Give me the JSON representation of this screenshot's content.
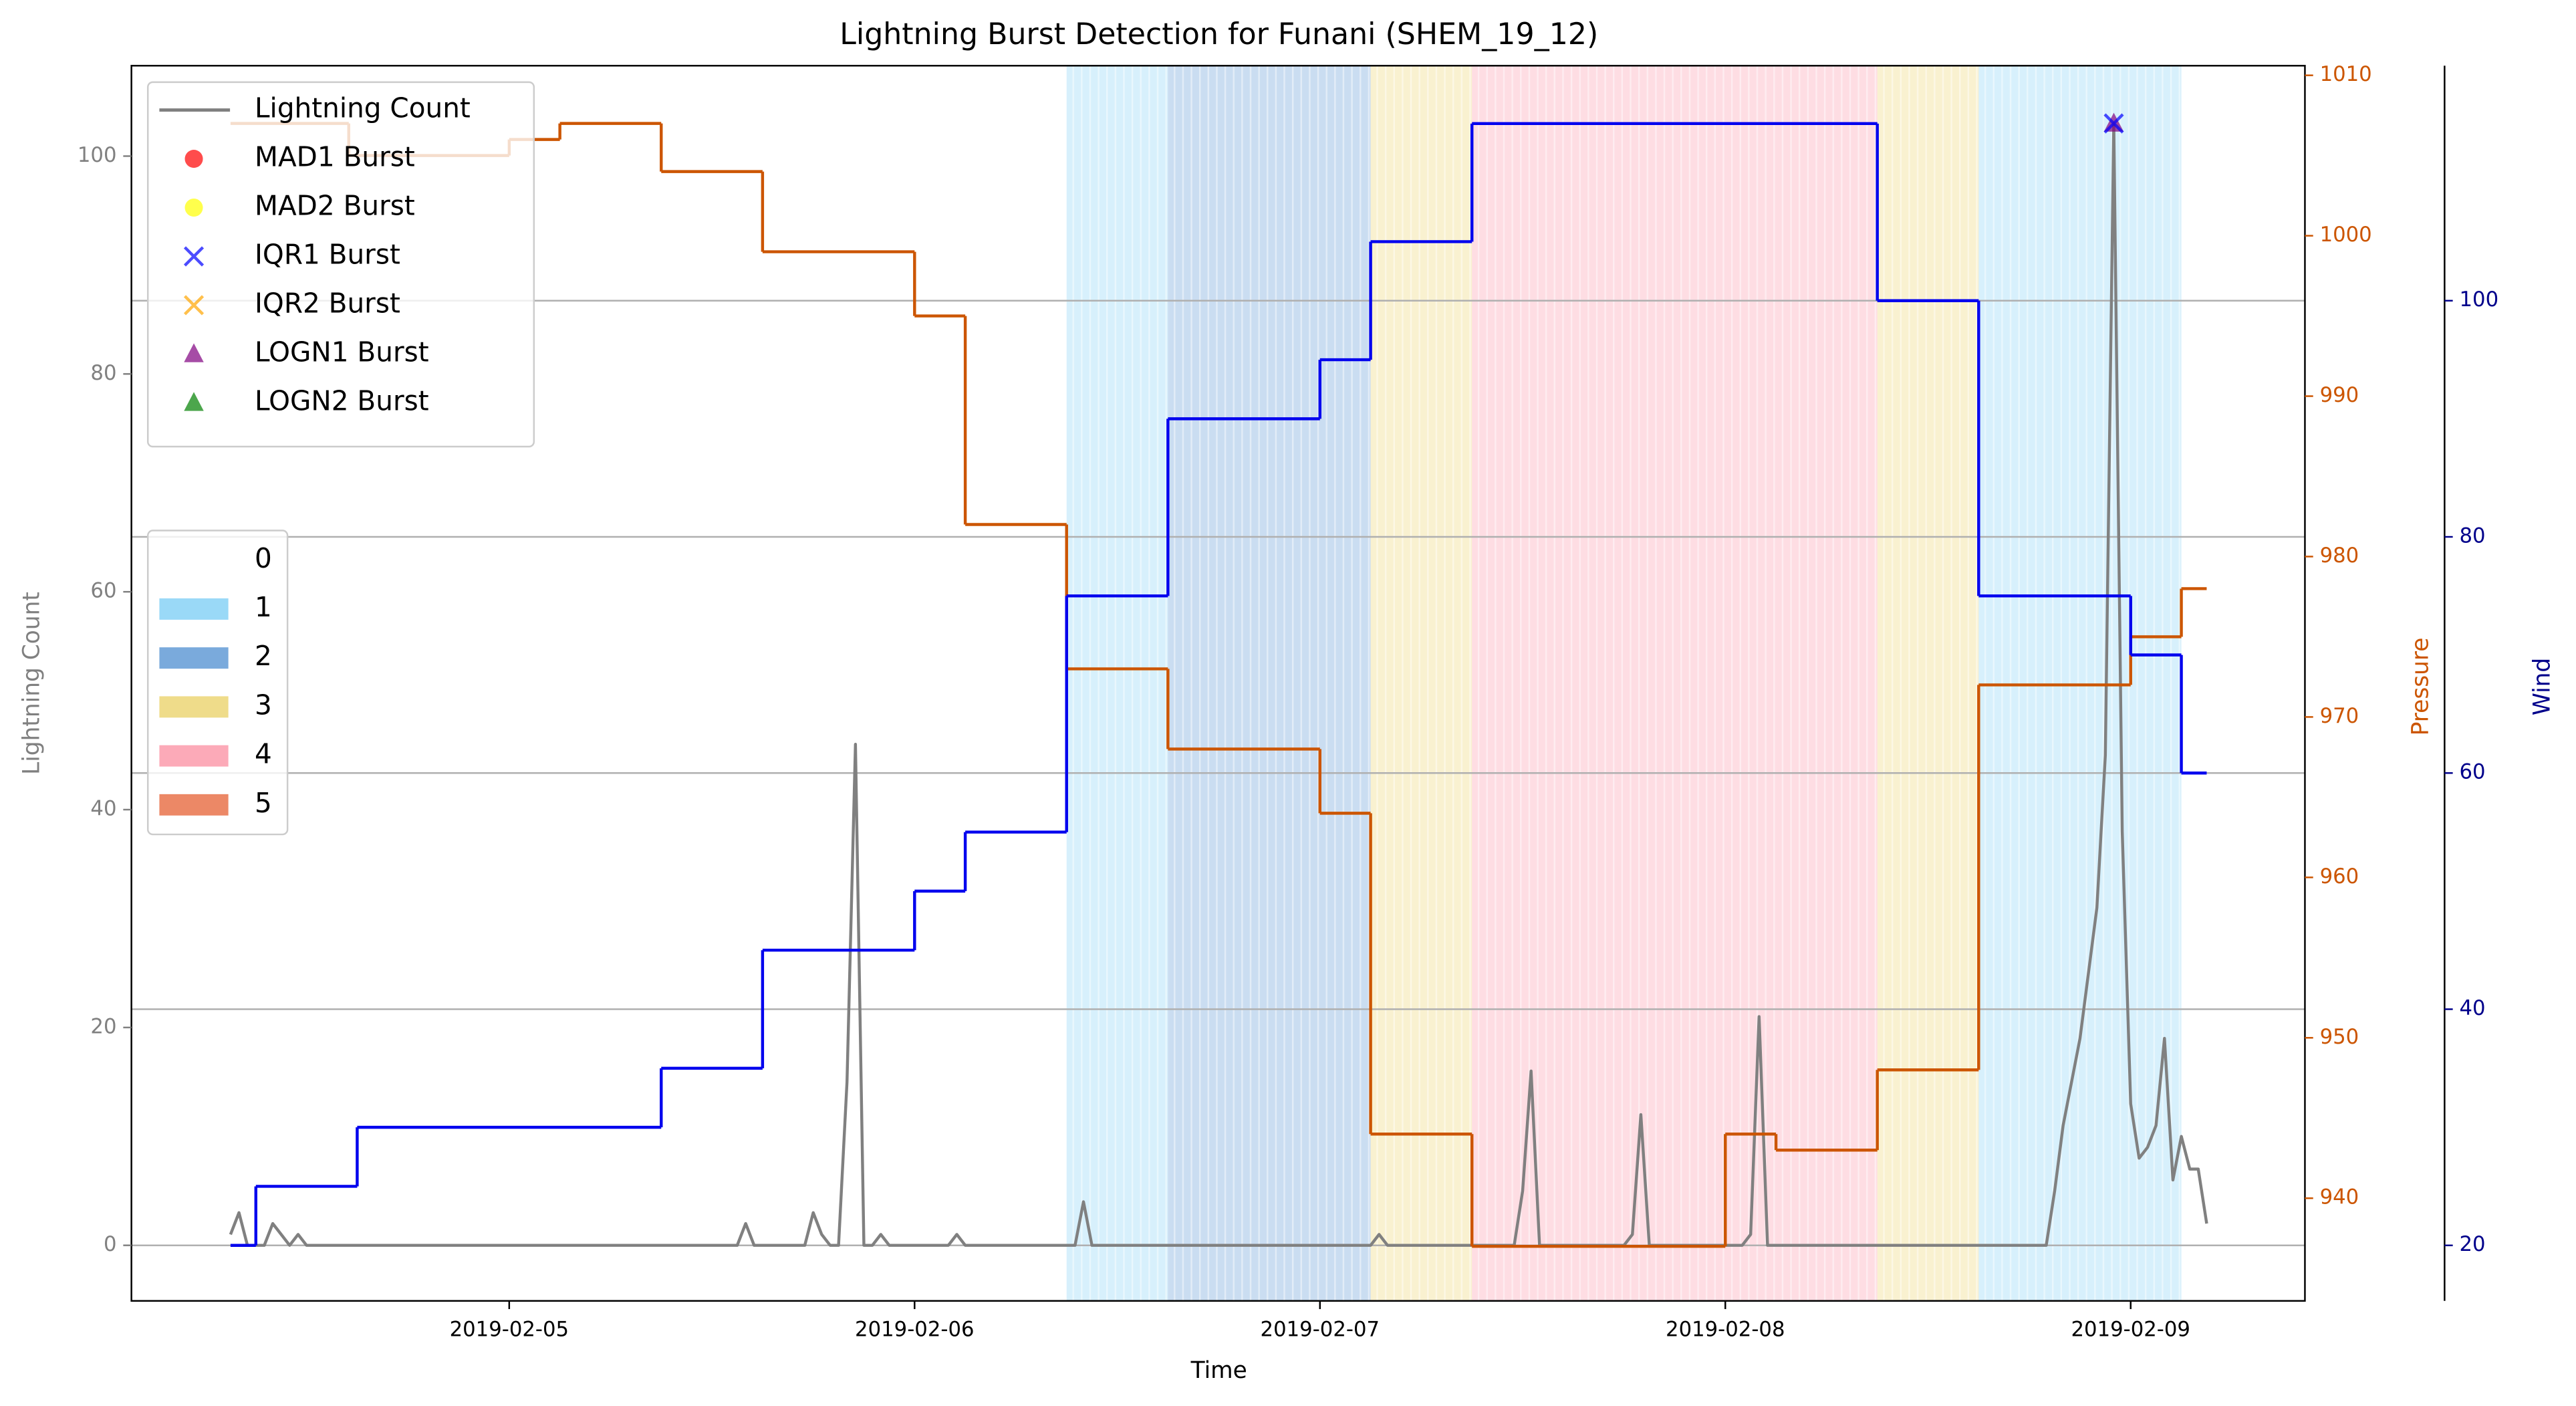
{
  "chart_data": {
    "type": "line",
    "title": "Lightning Burst Detection for Funani (SHEM_19_12)",
    "xlabel": "Time",
    "ylabel": "Lightning Count",
    "y2label": "Pressure",
    "y3label": "Wind",
    "xlim": [
      "2019-02-04 01:38",
      "2019-02-09 10:19"
    ],
    "xticks": [
      "2019-02-05",
      "2019-02-06",
      "2019-02-07",
      "2019-02-08",
      "2019-02-09"
    ],
    "ylim": [
      -5.1,
      108.3
    ],
    "yticks": [
      0,
      20,
      40,
      60,
      80,
      100
    ],
    "y2lim": [
      933.6,
      1010.6
    ],
    "y2ticks": [
      940,
      950,
      960,
      970,
      980,
      990,
      1000,
      1010
    ],
    "y3lim": [
      15.3,
      119.9
    ],
    "y3ticks": [
      20,
      40,
      60,
      80,
      100
    ],
    "y3grid": true,
    "legend_loc": "upper left",
    "series": [
      {
        "name": "Lightning Count",
        "color": "#808080",
        "x": [
          "2019-02-04 07:30",
          "2019-02-04 08:00",
          "2019-02-04 08:30",
          "2019-02-04 09:30",
          "2019-02-04 10:00",
          "2019-02-04 10:30",
          "2019-02-04 11:00",
          "2019-02-04 11:30",
          "2019-02-04 12:00",
          "2019-02-05 13:30",
          "2019-02-05 14:00",
          "2019-02-05 14:30",
          "2019-02-05 17:30",
          "2019-02-05 18:00",
          "2019-02-05 18:30",
          "2019-02-05 19:00",
          "2019-02-05 19:30",
          "2019-02-05 20:00",
          "2019-02-05 20:30",
          "2019-02-05 21:00",
          "2019-02-05 21:30",
          "2019-02-05 22:00",
          "2019-02-05 22:30",
          "2019-02-06 02:00",
          "2019-02-06 02:30",
          "2019-02-06 03:00",
          "2019-02-06 09:30",
          "2019-02-06 10:00",
          "2019-02-06 10:30",
          "2019-02-07 03:00",
          "2019-02-07 03:30",
          "2019-02-07 04:00",
          "2019-02-07 11:30",
          "2019-02-07 12:00",
          "2019-02-07 12:30",
          "2019-02-07 13:00",
          "2019-02-07 18:00",
          "2019-02-07 18:30",
          "2019-02-07 19:00",
          "2019-02-07 19:30",
          "2019-02-08 01:00",
          "2019-02-08 01:30",
          "2019-02-08 02:00",
          "2019-02-08 02:30",
          "2019-02-08 19:00",
          "2019-02-08 19:30",
          "2019-02-08 20:00",
          "2019-02-08 21:00",
          "2019-02-08 22:00",
          "2019-02-08 22:30",
          "2019-02-08 23:00",
          "2019-02-08 23:30",
          "2019-02-09 00:00",
          "2019-02-09 00:30",
          "2019-02-09 01:00",
          "2019-02-09 01:30",
          "2019-02-09 02:00",
          "2019-02-09 02:30",
          "2019-02-09 03:00",
          "2019-02-09 03:30",
          "2019-02-09 04:00",
          "2019-02-09 04:30"
        ],
        "values": [
          1,
          3,
          0,
          0,
          2,
          1,
          0,
          1,
          0,
          0,
          2,
          0,
          0,
          3,
          1,
          0,
          0,
          15,
          46,
          0,
          0,
          1,
          0,
          0,
          1,
          0,
          0,
          4,
          0,
          0,
          1,
          0,
          0,
          5,
          16,
          0,
          0,
          1,
          12,
          0,
          0,
          1,
          21,
          0,
          0,
          5,
          11,
          19,
          31,
          45,
          103,
          38,
          13,
          8,
          9,
          11,
          19,
          6,
          10,
          7,
          7,
          2
        ]
      },
      {
        "axis": "y2",
        "color": "#cc5500",
        "drawstyle": "steps-post",
        "x": [
          "2019-02-04 07:30",
          "2019-02-04 14:30",
          "2019-02-05 00:00",
          "2019-02-05 03:00",
          "2019-02-05 09:00",
          "2019-02-05 15:00",
          "2019-02-06 00:00",
          "2019-02-06 03:00",
          "2019-02-06 09:00",
          "2019-02-06 15:00",
          "2019-02-07 00:00",
          "2019-02-07 03:00",
          "2019-02-07 09:00",
          "2019-02-08 00:00",
          "2019-02-08 03:00",
          "2019-02-08 09:00",
          "2019-02-08 15:00",
          "2019-02-09 00:00",
          "2019-02-09 03:00",
          "2019-02-09 04:30"
        ],
        "values": [
          1007,
          1005,
          1006,
          1007,
          1004,
          999,
          995,
          982,
          973,
          968,
          964,
          944,
          937,
          944,
          943,
          948,
          972,
          975,
          978,
          978
        ]
      },
      {
        "axis": "y3",
        "color": "#0000ee",
        "drawstyle": "steps-post",
        "x": [
          "2019-02-04 07:30",
          "2019-02-04 09:00",
          "2019-02-04 15:00",
          "2019-02-05 09:00",
          "2019-02-05 15:00",
          "2019-02-06 00:00",
          "2019-02-06 03:00",
          "2019-02-06 09:00",
          "2019-02-06 15:00",
          "2019-02-07 00:00",
          "2019-02-07 03:00",
          "2019-02-07 09:00",
          "2019-02-08 09:00",
          "2019-02-08 15:00",
          "2019-02-09 00:00",
          "2019-02-09 03:00",
          "2019-02-09 04:30"
        ],
        "values": [
          20,
          25,
          30,
          35,
          45,
          50,
          55,
          75,
          90,
          95,
          105,
          115,
          100,
          75,
          70,
          60,
          60
        ]
      }
    ],
    "bursts": [
      {
        "name": "MAD1 Burst",
        "color": "#ff0000",
        "marker": "o",
        "x": [],
        "values": []
      },
      {
        "name": "MAD2 Burst",
        "color": "#ffff00",
        "marker": "o",
        "x": [],
        "values": []
      },
      {
        "name": "IQR1 Burst",
        "color": "#0000ff",
        "marker": "x",
        "x": [
          "2019-02-08 23:00"
        ],
        "values": [
          103
        ]
      },
      {
        "name": "IQR2 Burst",
        "color": "#ffa500",
        "marker": "x",
        "x": [],
        "values": []
      },
      {
        "name": "LOGN1 Burst",
        "color": "#800080",
        "marker": "^",
        "x": [
          "2019-02-08 23:00"
        ],
        "values": [
          103
        ]
      },
      {
        "name": "LOGN2 Burst",
        "color": "#008000",
        "marker": "^",
        "x": [],
        "values": []
      }
    ],
    "marker_alpha": 0.7,
    "class_legend": {
      "labels": [
        0,
        1,
        2,
        3,
        4,
        5
      ],
      "colors": [
        "#ffffff",
        "#9ad9f7",
        "#7aaadc",
        "#efdc8a",
        "#fcaab8",
        "#ec8866"
      ]
    },
    "band_alpha": 0.4,
    "bands": {
      "start": [
        "2019-02-06 09:00",
        "2019-02-06 15:00",
        "2019-02-07 03:00",
        "2019-02-07 09:00",
        "2019-02-08 09:00",
        "2019-02-08 15:00"
      ],
      "end": [
        "2019-02-06 15:00",
        "2019-02-07 03:00",
        "2019-02-07 09:00",
        "2019-02-08 09:00",
        "2019-02-08 15:00",
        "2019-02-09 03:00"
      ],
      "class": [
        1,
        2,
        3,
        4,
        3,
        1
      ]
    }
  }
}
